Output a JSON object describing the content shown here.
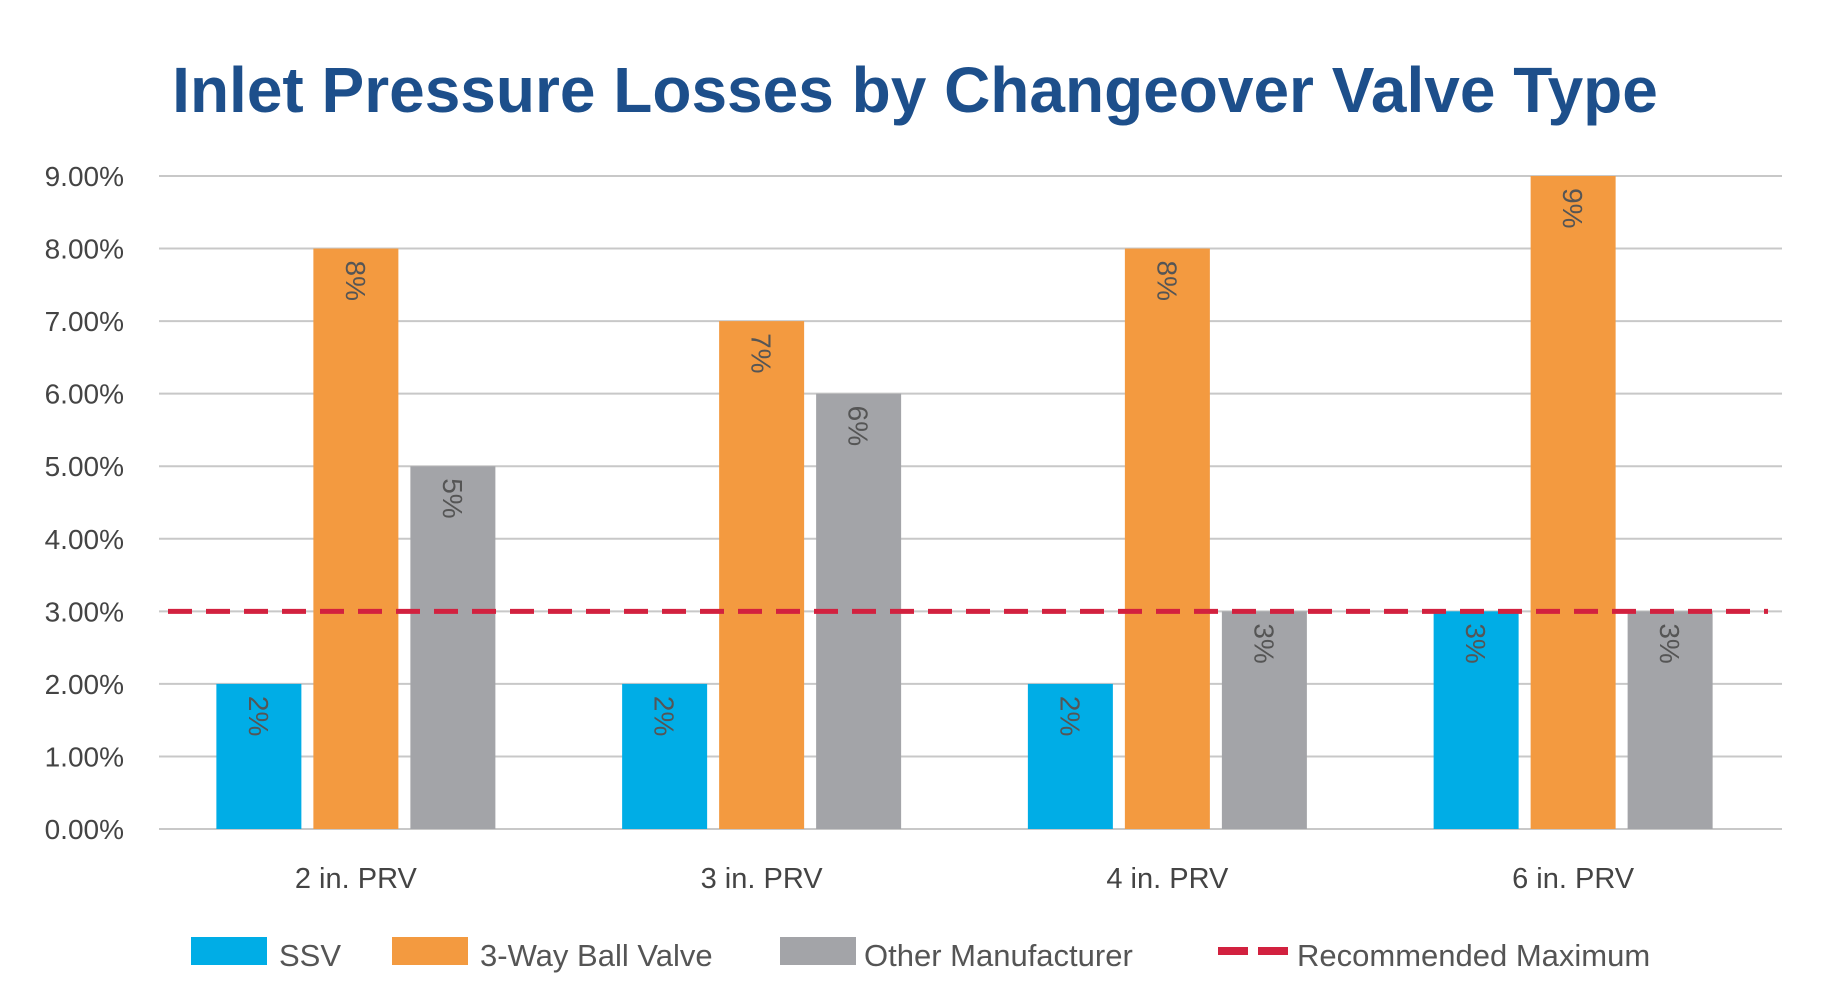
{
  "chart_data": {
    "type": "bar",
    "title": "Inlet Pressure Losses by Changeover Valve Type",
    "xlabel": "",
    "ylabel": "",
    "categories": [
      "2 in. PRV",
      "3 in. PRV",
      "4 in. PRV",
      "6 in. PRV"
    ],
    "series": [
      {
        "name": "SSV",
        "values": [
          2,
          2,
          2,
          3
        ],
        "labels": [
          "2%",
          "2%",
          "2%",
          "3%"
        ],
        "color": "#00ade6"
      },
      {
        "name": "3-Way Ball Valve",
        "values": [
          8,
          7,
          8,
          9
        ],
        "labels": [
          "8%",
          "7%",
          "8%",
          "9%"
        ],
        "color": "#f39a40"
      },
      {
        "name": "Other Manufacturer",
        "values": [
          5,
          6,
          3,
          3
        ],
        "labels": [
          "5%",
          "6%",
          "3%",
          "3%"
        ],
        "color": "#a3a4a8"
      }
    ],
    "reference_line": {
      "name": "Recommended Maximum",
      "value": 3,
      "color": "#d2213f",
      "style": "dashed"
    },
    "ylim": [
      0,
      9
    ],
    "yticks": [
      0,
      1,
      2,
      3,
      4,
      5,
      6,
      7,
      8,
      9
    ],
    "ytick_labels": [
      "0.00%",
      "1.00%",
      "2.00%",
      "3.00%",
      "4.00%",
      "5.00%",
      "6.00%",
      "7.00%",
      "8.00%",
      "9.00%"
    ],
    "grid": true,
    "gridline_color": "#c8c8c8",
    "legend_position": "bottom",
    "title_color": "#1d4f8b"
  }
}
